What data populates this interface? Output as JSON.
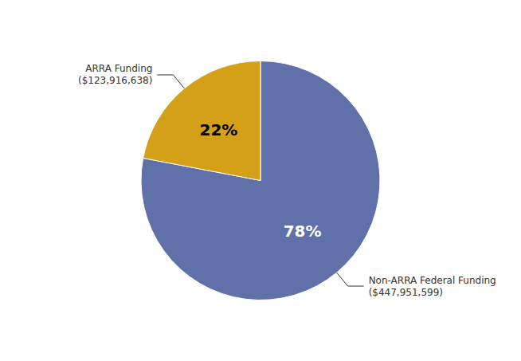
{
  "chart_data": {
    "type": "pie",
    "categories": [
      "Non-ARRA Federal Funding\n($447,951,599)",
      "ARRA Funding\n($123,916,638)"
    ],
    "values": [
      78,
      22
    ],
    "value_labels": [
      "78%",
      "22%"
    ],
    "data_labels": true,
    "colors": [
      "#6070a8",
      "#d4a017"
    ]
  }
}
